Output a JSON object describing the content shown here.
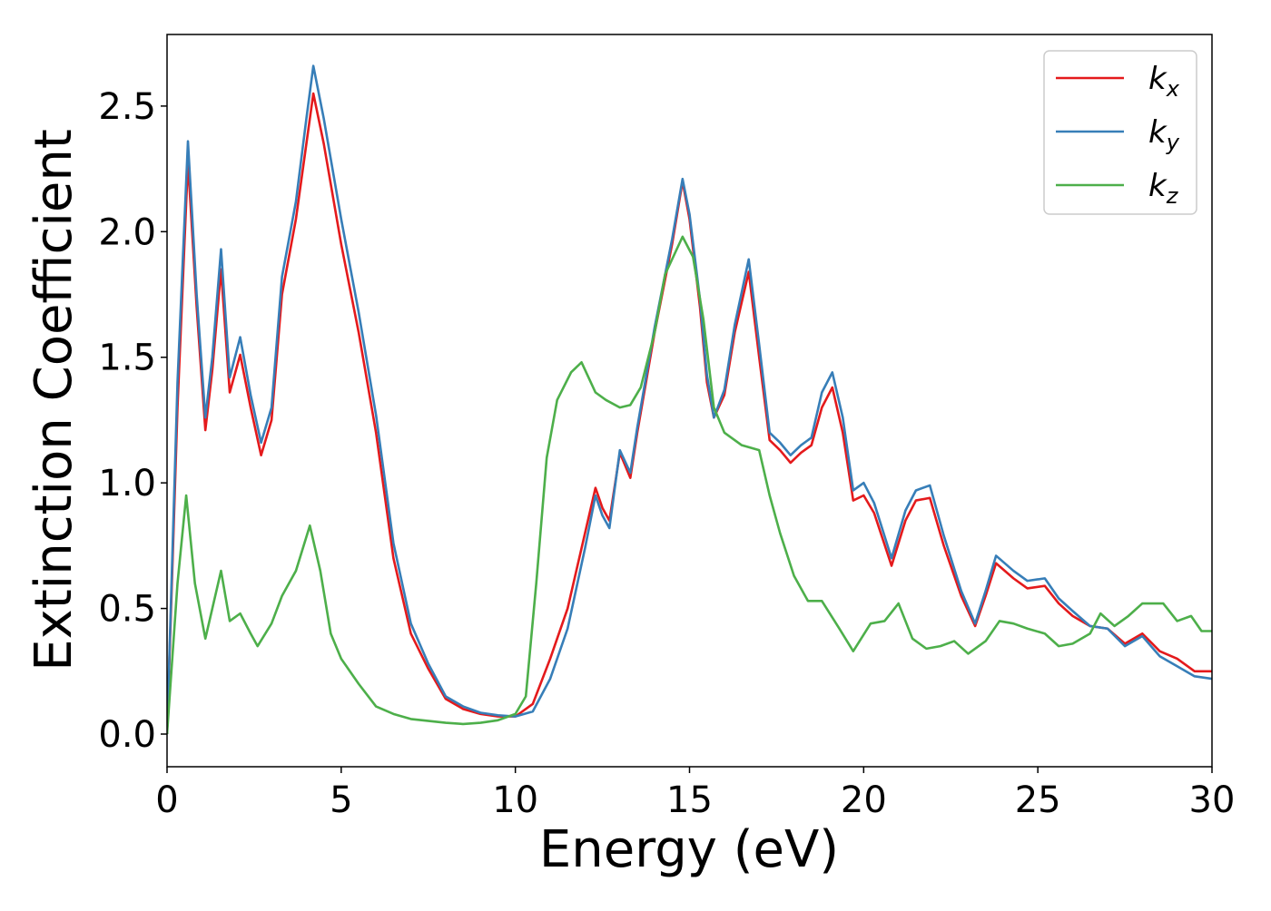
{
  "chart_data": {
    "type": "line",
    "xlabel": "Energy (eV)",
    "ylabel": "Extinction Coefficient",
    "xlim": [
      0,
      30
    ],
    "ylim": [
      -0.13,
      2.785
    ],
    "xticks": [
      0,
      5,
      10,
      15,
      20,
      25,
      30
    ],
    "yticks": [
      {
        "value": 0,
        "label": "0.0"
      },
      0.5,
      {
        "value": 1,
        "label": "1.0"
      },
      1.5,
      {
        "value": 2,
        "label": "2.0"
      },
      2.5
    ],
    "grid": false,
    "legend": "upper right",
    "series": [
      {
        "name": "kx",
        "color": "#e41a1c",
        "x": [
          0,
          0.3,
          0.6,
          0.85,
          1.1,
          1.3,
          1.55,
          1.8,
          2.1,
          2.4,
          2.7,
          3.0,
          3.3,
          3.7,
          4.0,
          4.2,
          4.5,
          5.0,
          5.5,
          6.0,
          6.5,
          7.0,
          7.5,
          8.0,
          8.5,
          9.0,
          9.5,
          10.0,
          10.5,
          11.0,
          11.5,
          12.0,
          12.3,
          12.5,
          12.7,
          13.0,
          13.3,
          13.5,
          14.0,
          14.5,
          14.8,
          15.0,
          15.3,
          15.5,
          15.7,
          16.0,
          16.3,
          16.7,
          17.0,
          17.3,
          17.6,
          17.9,
          18.2,
          18.5,
          18.8,
          19.1,
          19.4,
          19.7,
          20.0,
          20.3,
          20.8,
          21.2,
          21.5,
          21.9,
          22.3,
          22.8,
          23.2,
          23.5,
          23.8,
          24.3,
          24.7,
          25.2,
          25.6,
          26.0,
          26.5,
          27.0,
          27.5,
          28.0,
          28.5,
          29.0,
          29.5,
          30.0
        ],
        "values": [
          0.0,
          1.3,
          2.28,
          1.7,
          1.21,
          1.45,
          1.85,
          1.36,
          1.51,
          1.3,
          1.11,
          1.25,
          1.75,
          2.05,
          2.35,
          2.55,
          2.35,
          1.95,
          1.6,
          1.2,
          0.7,
          0.4,
          0.26,
          0.14,
          0.1,
          0.08,
          0.07,
          0.07,
          0.12,
          0.3,
          0.5,
          0.8,
          0.98,
          0.9,
          0.85,
          1.12,
          1.02,
          1.2,
          1.6,
          1.95,
          2.2,
          2.05,
          1.7,
          1.4,
          1.26,
          1.35,
          1.6,
          1.84,
          1.5,
          1.17,
          1.13,
          1.08,
          1.12,
          1.15,
          1.3,
          1.38,
          1.2,
          0.93,
          0.95,
          0.88,
          0.67,
          0.85,
          0.93,
          0.94,
          0.75,
          0.55,
          0.43,
          0.55,
          0.68,
          0.62,
          0.58,
          0.59,
          0.52,
          0.47,
          0.43,
          0.42,
          0.36,
          0.4,
          0.33,
          0.3,
          0.25,
          0.25
        ]
      },
      {
        "name": "ky",
        "color": "#377eb8",
        "x": [
          0,
          0.3,
          0.6,
          0.85,
          1.1,
          1.3,
          1.55,
          1.8,
          2.1,
          2.4,
          2.7,
          3.0,
          3.3,
          3.7,
          4.0,
          4.2,
          4.5,
          5.0,
          5.5,
          6.0,
          6.5,
          7.0,
          7.5,
          8.0,
          8.5,
          9.0,
          9.5,
          10.0,
          10.5,
          11.0,
          11.5,
          12.0,
          12.3,
          12.5,
          12.7,
          13.0,
          13.3,
          13.5,
          14.0,
          14.5,
          14.8,
          15.0,
          15.3,
          15.5,
          15.7,
          16.0,
          16.3,
          16.7,
          17.0,
          17.3,
          17.6,
          17.9,
          18.2,
          18.5,
          18.8,
          19.1,
          19.4,
          19.7,
          20.0,
          20.3,
          20.8,
          21.2,
          21.5,
          21.9,
          22.3,
          22.8,
          23.2,
          23.5,
          23.8,
          24.3,
          24.7,
          25.2,
          25.6,
          26.0,
          26.5,
          27.0,
          27.5,
          28.0,
          28.5,
          29.0,
          29.5,
          30.0
        ],
        "values": [
          0.0,
          1.4,
          2.36,
          1.75,
          1.26,
          1.5,
          1.93,
          1.42,
          1.58,
          1.35,
          1.16,
          1.3,
          1.82,
          2.12,
          2.45,
          2.66,
          2.45,
          2.05,
          1.68,
          1.27,
          0.76,
          0.44,
          0.28,
          0.15,
          0.11,
          0.085,
          0.075,
          0.07,
          0.09,
          0.22,
          0.42,
          0.74,
          0.95,
          0.87,
          0.82,
          1.13,
          1.04,
          1.22,
          1.62,
          1.97,
          2.21,
          2.07,
          1.73,
          1.43,
          1.26,
          1.37,
          1.63,
          1.89,
          1.55,
          1.2,
          1.16,
          1.11,
          1.15,
          1.18,
          1.36,
          1.44,
          1.26,
          0.97,
          1.0,
          0.92,
          0.7,
          0.89,
          0.97,
          0.99,
          0.79,
          0.57,
          0.44,
          0.57,
          0.71,
          0.65,
          0.61,
          0.62,
          0.54,
          0.49,
          0.43,
          0.42,
          0.35,
          0.39,
          0.31,
          0.27,
          0.23,
          0.22
        ]
      },
      {
        "name": "kz",
        "color": "#4daf4a",
        "x": [
          0,
          0.3,
          0.55,
          0.8,
          1.1,
          1.3,
          1.55,
          1.8,
          2.1,
          2.4,
          2.6,
          3.0,
          3.3,
          3.7,
          4.1,
          4.4,
          4.7,
          5.0,
          5.5,
          6.0,
          6.5,
          7.0,
          8.0,
          8.5,
          9.0,
          9.5,
          10.0,
          10.3,
          10.6,
          10.9,
          11.2,
          11.6,
          11.9,
          12.3,
          12.6,
          13.0,
          13.3,
          13.6,
          14.0,
          14.3,
          14.8,
          15.1,
          15.4,
          15.7,
          16.0,
          16.5,
          17.0,
          17.3,
          17.6,
          18.0,
          18.4,
          18.8,
          19.3,
          19.7,
          20.2,
          20.6,
          21.0,
          21.4,
          21.8,
          22.2,
          22.6,
          23.0,
          23.5,
          23.9,
          24.3,
          24.7,
          25.2,
          25.6,
          26.0,
          26.5,
          26.8,
          27.2,
          27.6,
          28.0,
          28.6,
          29.0,
          29.4,
          29.7,
          30.0
        ],
        "values": [
          0.0,
          0.6,
          0.95,
          0.6,
          0.38,
          0.5,
          0.65,
          0.45,
          0.48,
          0.4,
          0.35,
          0.44,
          0.55,
          0.65,
          0.83,
          0.65,
          0.4,
          0.3,
          0.2,
          0.11,
          0.08,
          0.06,
          0.045,
          0.04,
          0.045,
          0.055,
          0.08,
          0.15,
          0.6,
          1.1,
          1.33,
          1.44,
          1.48,
          1.36,
          1.33,
          1.3,
          1.31,
          1.38,
          1.6,
          1.83,
          1.98,
          1.9,
          1.65,
          1.3,
          1.2,
          1.15,
          1.13,
          0.95,
          0.8,
          0.63,
          0.53,
          0.53,
          0.42,
          0.33,
          0.44,
          0.45,
          0.52,
          0.38,
          0.34,
          0.35,
          0.37,
          0.32,
          0.37,
          0.45,
          0.44,
          0.42,
          0.4,
          0.35,
          0.36,
          0.4,
          0.48,
          0.43,
          0.47,
          0.52,
          0.52,
          0.45,
          0.47,
          0.41,
          0.41
        ]
      }
    ]
  }
}
